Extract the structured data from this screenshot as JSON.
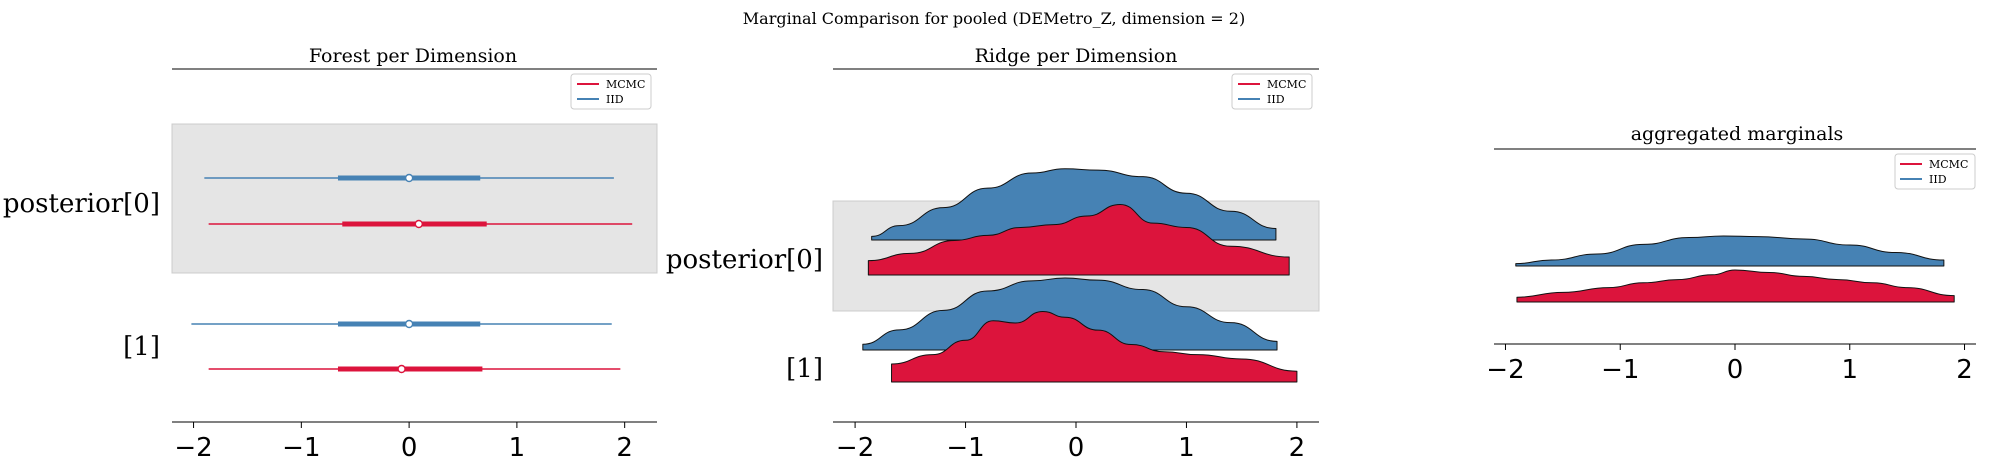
{
  "figure": {
    "suptitle": "Marginal Comparison for pooled (DEMetro_Z, dimension = 2)"
  },
  "colors": {
    "mcmc": "#dc143c",
    "iid": "#4682b4",
    "band": "#e5e5e5"
  },
  "chart_data": [
    {
      "type": "forest",
      "title": "Forest per Dimension",
      "xlim": [
        -2.2,
        2.3
      ],
      "xticks": [
        "−2",
        "−1",
        "0",
        "1",
        "2"
      ],
      "xtick_values": [
        -2,
        -1,
        0,
        1,
        2
      ],
      "y_labels": [
        "posterior[0]",
        "[1]"
      ],
      "legend": {
        "entries": [
          "MCMC",
          "IID"
        ],
        "placement": "top-right"
      },
      "series": [
        {
          "name": "MCMC",
          "rows": [
            {
              "label": "posterior[0]",
              "hdi": [
                -1.86,
                2.07
              ],
              "iqr": [
                -0.62,
                0.72
              ],
              "point": 0.09
            },
            {
              "label": "[1]",
              "hdi": [
                -1.86,
                1.96
              ],
              "iqr": [
                -0.66,
                0.68
              ],
              "point": -0.07
            }
          ]
        },
        {
          "name": "IID",
          "rows": [
            {
              "label": "posterior[0]",
              "hdi": [
                -1.9,
                1.9
              ],
              "iqr": [
                -0.66,
                0.66
              ],
              "point": 0.0
            },
            {
              "label": "[1]",
              "hdi": [
                -2.02,
                1.88
              ],
              "iqr": [
                -0.66,
                0.66
              ],
              "point": 0.0
            }
          ]
        }
      ]
    },
    {
      "type": "ridge",
      "title": "Ridge per Dimension",
      "xlim": [
        -2.2,
        2.2
      ],
      "xticks": [
        "−2",
        "−1",
        "0",
        "1",
        "2"
      ],
      "xtick_values": [
        -2,
        -1,
        0,
        1,
        2
      ],
      "y_labels": [
        "posterior[0]",
        "[1]"
      ],
      "legend": {
        "entries": [
          "MCMC",
          "IID"
        ],
        "placement": "top-right"
      },
      "series": [
        {
          "name": "IID",
          "rows": [
            {
              "label": "posterior[0]",
              "x": [
                -1.85,
                -1.6,
                -1.2,
                -0.8,
                -0.4,
                -0.1,
                0.2,
                0.6,
                1.0,
                1.4,
                1.81
              ],
              "density": [
                0.05,
                0.2,
                0.45,
                0.72,
                0.93,
                0.99,
                0.97,
                0.88,
                0.65,
                0.4,
                0.16
              ]
            },
            {
              "label": "[1]",
              "x": [
                -1.93,
                -1.6,
                -1.2,
                -0.8,
                -0.4,
                -0.1,
                0.2,
                0.6,
                1.0,
                1.4,
                1.82
              ],
              "density": [
                0.08,
                0.28,
                0.55,
                0.82,
                0.96,
                1.0,
                0.97,
                0.84,
                0.6,
                0.38,
                0.12
              ]
            }
          ]
        },
        {
          "name": "MCMC",
          "rows": [
            {
              "label": "posterior[0]",
              "x": [
                -1.88,
                -1.5,
                -1.1,
                -0.8,
                -0.5,
                -0.2,
                0.1,
                0.4,
                0.7,
                1.0,
                1.4,
                1.93
              ],
              "density": [
                0.2,
                0.3,
                0.48,
                0.55,
                0.66,
                0.7,
                0.82,
                0.98,
                0.72,
                0.66,
                0.4,
                0.25
              ]
            },
            {
              "label": "[1]",
              "x": [
                -1.67,
                -1.3,
                -1.0,
                -0.75,
                -0.55,
                -0.3,
                -0.1,
                0.2,
                0.5,
                0.8,
                1.1,
                1.5,
                2.0
              ],
              "density": [
                0.25,
                0.38,
                0.58,
                0.85,
                0.82,
                0.98,
                0.9,
                0.72,
                0.52,
                0.42,
                0.38,
                0.32,
                0.15
              ]
            }
          ]
        }
      ]
    },
    {
      "type": "ridge",
      "title": "aggregated marginals",
      "xlim": [
        -2.1,
        2.1
      ],
      "xticks": [
        "−2",
        "−1",
        "0",
        "1",
        "2"
      ],
      "xtick_values": [
        -2,
        -1,
        0,
        1,
        2
      ],
      "legend": {
        "entries": [
          "MCMC",
          "IID"
        ],
        "placement": "top-right"
      },
      "series": [
        {
          "name": "IID",
          "x": [
            -1.91,
            -1.6,
            -1.2,
            -0.8,
            -0.4,
            -0.1,
            0.2,
            0.6,
            1.0,
            1.4,
            1.82
          ],
          "density": [
            0.08,
            0.2,
            0.4,
            0.72,
            0.95,
            1.0,
            0.98,
            0.9,
            0.7,
            0.45,
            0.2
          ]
        },
        {
          "name": "MCMC",
          "x": [
            -1.9,
            -1.5,
            -1.1,
            -0.8,
            -0.5,
            -0.2,
            0.0,
            0.3,
            0.6,
            0.9,
            1.2,
            1.5,
            1.91
          ],
          "density": [
            0.15,
            0.3,
            0.45,
            0.6,
            0.7,
            0.85,
            1.0,
            0.92,
            0.8,
            0.7,
            0.6,
            0.45,
            0.2
          ]
        }
      ]
    }
  ]
}
